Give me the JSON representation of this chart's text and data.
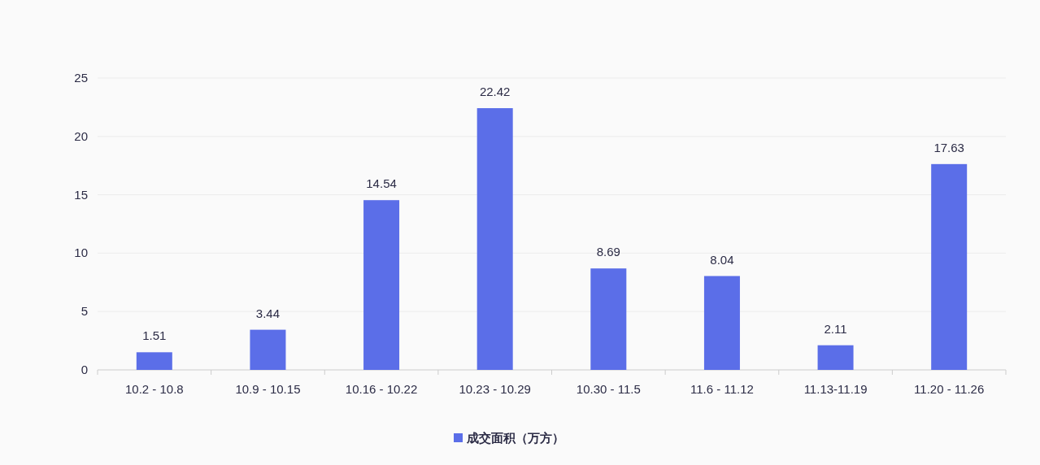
{
  "chart_data": {
    "type": "bar",
    "categories": [
      "10.2 - 10.8",
      "10.9 - 10.15",
      "10.16 - 10.22",
      "10.23 - 10.29",
      "10.30 - 11.5",
      "11.6 - 11.12",
      "11.13-11.19",
      "11.20 - 11.26"
    ],
    "series": [
      {
        "name": "成交面积（万方）",
        "color": "#5b6ee8",
        "values": [
          1.51,
          3.44,
          14.54,
          22.42,
          8.69,
          8.04,
          2.11,
          17.63
        ]
      }
    ],
    "ylim": [
      0,
      25
    ],
    "yticks": [
      0,
      5,
      10,
      15,
      20,
      25
    ],
    "grid": "y",
    "legend": "bottom",
    "data_labels": true
  }
}
